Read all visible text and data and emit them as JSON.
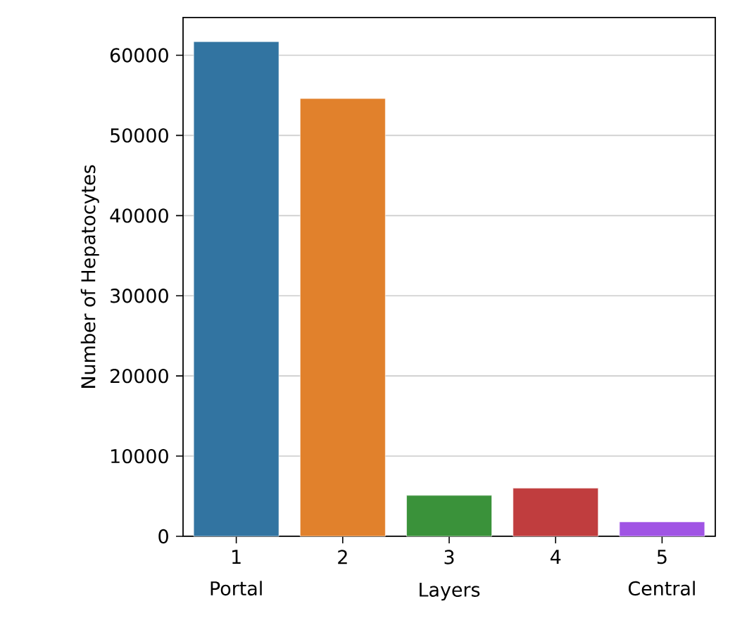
{
  "chart_data": {
    "type": "bar",
    "categories": [
      "1",
      "2",
      "3",
      "4",
      "5"
    ],
    "values": [
      61700,
      54600,
      5100,
      6000,
      1800
    ],
    "colors": [
      "#3274a1",
      "#e1812c",
      "#3a923a",
      "#c03d3e",
      "#a054e4"
    ],
    "xlabel": "Layers",
    "ylabel": "Number of Hepatocytes",
    "ylim": [
      0,
      64700
    ],
    "yticks": [
      0,
      10000,
      20000,
      30000,
      40000,
      50000,
      60000
    ],
    "grid": "y",
    "annotations": [
      "Portal",
      "Central"
    ]
  }
}
